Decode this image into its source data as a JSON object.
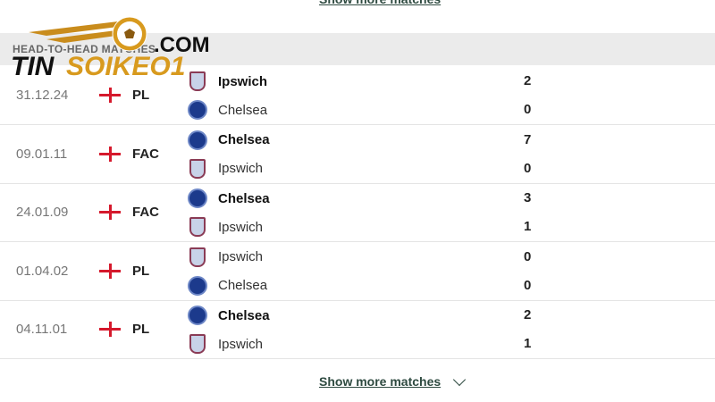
{
  "header": {
    "title": "HEAD-TO-HEAD MATCHES"
  },
  "watermark": {
    "text": "TINSOIKEO1.COM"
  },
  "matches": [
    {
      "date": "31.12.24",
      "competition": "PL",
      "home": {
        "name": "Ipswich",
        "crest": "ipswich-crest",
        "score": "2",
        "winner": true
      },
      "away": {
        "name": "Chelsea",
        "crest": "chelsea-crest",
        "score": "0",
        "winner": false
      }
    },
    {
      "date": "09.01.11",
      "competition": "FAC",
      "home": {
        "name": "Chelsea",
        "crest": "chelsea-crest",
        "score": "7",
        "winner": true
      },
      "away": {
        "name": "Ipswich",
        "crest": "ipswich-crest",
        "score": "0",
        "winner": false
      }
    },
    {
      "date": "24.01.09",
      "competition": "FAC",
      "home": {
        "name": "Chelsea",
        "crest": "chelsea-crest",
        "score": "3",
        "winner": true
      },
      "away": {
        "name": "Ipswich",
        "crest": "ipswich-crest",
        "score": "1",
        "winner": false
      }
    },
    {
      "date": "01.04.02",
      "competition": "PL",
      "home": {
        "name": "Ipswich",
        "crest": "ipswich-crest",
        "score": "0",
        "winner": false
      },
      "away": {
        "name": "Chelsea",
        "crest": "chelsea-crest",
        "score": "0",
        "winner": false
      }
    },
    {
      "date": "04.11.01",
      "competition": "PL",
      "home": {
        "name": "Chelsea",
        "crest": "chelsea-crest",
        "score": "2",
        "winner": true
      },
      "away": {
        "name": "Ipswich",
        "crest": "ipswich-crest",
        "score": "1",
        "winner": false
      }
    }
  ],
  "show_more_label": "Show more matches",
  "colors": {
    "accent": "#2e4a40",
    "england_red": "#d5192c",
    "logo_gold": "#d89a1e"
  }
}
